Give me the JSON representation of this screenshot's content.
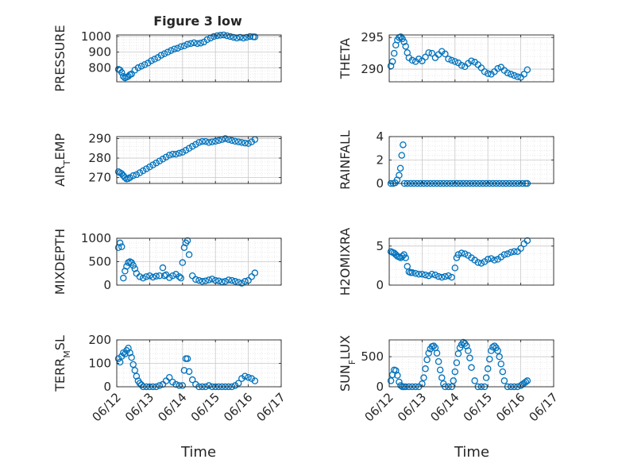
{
  "figure": {
    "title": "Figure 3 low",
    "xlabel": "Time",
    "xtick_labels": [
      "06/12",
      "06/13",
      "06/14",
      "06/15",
      "06/16",
      "06/17"
    ]
  },
  "colors": {
    "marker": "#0072BD",
    "grid": "#dcdcdc",
    "axis": "#262626",
    "background": "#ffffff"
  },
  "chart_data": [
    {
      "type": "scatter",
      "ylabel": "PRESSURE",
      "ylim": [
        710,
        1010
      ],
      "yticks": [
        800,
        900,
        1000
      ],
      "xlim": [
        0,
        5
      ],
      "xticks": [
        0,
        1,
        2,
        3,
        4,
        5
      ],
      "grid": true,
      "series": [
        {
          "x": [
            0.05,
            0.1,
            0.15,
            0.2,
            0.25,
            0.3,
            0.35,
            0.4,
            0.45,
            0.55,
            0.65,
            0.75,
            0.85,
            0.95,
            1.05,
            1.15,
            1.25,
            1.35,
            1.45,
            1.55,
            1.65,
            1.75,
            1.85,
            1.95,
            2.05,
            2.15,
            2.25,
            2.35,
            2.45,
            2.55,
            2.65,
            2.75,
            2.85,
            2.95,
            3.05,
            3.15,
            3.25,
            3.35,
            3.45,
            3.55,
            3.65,
            3.75,
            3.85,
            3.95,
            4.05,
            4.15,
            4.2
          ],
          "y": [
            790,
            785,
            770,
            745,
            735,
            740,
            745,
            755,
            760,
            785,
            800,
            810,
            820,
            830,
            845,
            855,
            865,
            880,
            890,
            900,
            910,
            920,
            925,
            935,
            940,
            950,
            955,
            960,
            955,
            958,
            965,
            980,
            990,
            1000,
            1005,
            1008,
            1010,
            1005,
            1000,
            995,
            990,
            995,
            990,
            995,
            1000,
            998,
            997
          ]
        }
      ]
    },
    {
      "type": "scatter",
      "ylabel": "THETA",
      "ylim": [
        288,
        295.4
      ],
      "yticks": [
        290,
        295
      ],
      "xlim": [
        0,
        5
      ],
      "xticks": [
        0,
        1,
        2,
        3,
        4,
        5
      ],
      "grid": true,
      "series": [
        {
          "x": [
            0.05,
            0.1,
            0.15,
            0.2,
            0.25,
            0.3,
            0.35,
            0.4,
            0.45,
            0.5,
            0.55,
            0.6,
            0.7,
            0.8,
            0.9,
            1.0,
            1.1,
            1.2,
            1.3,
            1.4,
            1.5,
            1.6,
            1.7,
            1.8,
            1.9,
            2.0,
            2.1,
            2.2,
            2.3,
            2.4,
            2.5,
            2.6,
            2.7,
            2.8,
            2.9,
            3.0,
            3.1,
            3.2,
            3.3,
            3.4,
            3.5,
            3.6,
            3.7,
            3.8,
            3.9,
            4.0,
            4.1,
            4.2
          ],
          "y": [
            290.5,
            291.2,
            292.5,
            293.8,
            294.6,
            295,
            295.1,
            294.8,
            294.3,
            293.6,
            292.6,
            291.8,
            291.4,
            291.2,
            291.6,
            291.3,
            291.9,
            292.6,
            292.5,
            291.8,
            292.3,
            292.8,
            292.4,
            291.6,
            291.4,
            291.2,
            291,
            290.6,
            290.4,
            290.9,
            291.3,
            291.1,
            290.7,
            290.2,
            289.6,
            289.3,
            289.2,
            289.6,
            290.1,
            290.3,
            289.8,
            289.4,
            289.2,
            289,
            288.8,
            288.7,
            289.2,
            289.9
          ]
        }
      ]
    },
    {
      "type": "scatter",
      "ylabel": "AIR_TEMP",
      "ylim": [
        267,
        291
      ],
      "yticks": [
        270,
        280,
        290
      ],
      "xlim": [
        0,
        5
      ],
      "xticks": [
        0,
        1,
        2,
        3,
        4,
        5
      ],
      "grid": true,
      "series": [
        {
          "x": [
            0.05,
            0.1,
            0.15,
            0.2,
            0.25,
            0.3,
            0.35,
            0.4,
            0.5,
            0.6,
            0.7,
            0.8,
            0.9,
            1.0,
            1.1,
            1.2,
            1.3,
            1.4,
            1.5,
            1.6,
            1.7,
            1.8,
            1.9,
            2.0,
            2.1,
            2.2,
            2.3,
            2.4,
            2.5,
            2.6,
            2.7,
            2.8,
            2.9,
            3.0,
            3.1,
            3.2,
            3.3,
            3.4,
            3.5,
            3.6,
            3.7,
            3.8,
            3.9,
            4.0,
            4.1,
            4.2
          ],
          "y": [
            273,
            272.5,
            272,
            271,
            270,
            269.3,
            269.5,
            270,
            271,
            271.5,
            272.5,
            273.5,
            274.5,
            275.5,
            276.5,
            277.5,
            278.5,
            279.5,
            280.5,
            281.5,
            282,
            282,
            282.5,
            283,
            284,
            285,
            286,
            287,
            288,
            288.5,
            288.5,
            288,
            288.3,
            288.6,
            289,
            289.5,
            290,
            289.5,
            289,
            288.6,
            288.3,
            288,
            287.7,
            287.5,
            288.3,
            289.5
          ]
        }
      ]
    },
    {
      "type": "scatter",
      "ylabel": "RAINFALL",
      "ylim": [
        0,
        4
      ],
      "yticks": [
        0,
        2,
        4
      ],
      "xlim": [
        0,
        5
      ],
      "xticks": [
        0,
        1,
        2,
        3,
        4,
        5
      ],
      "grid": true,
      "series": [
        {
          "x": [
            0.05,
            0.12,
            0.18,
            0.24,
            0.3,
            0.34,
            0.38,
            0.42,
            0.46,
            0.55,
            0.65,
            0.75,
            0.85,
            0.95,
            1.05,
            1.15,
            1.25,
            1.35,
            1.45,
            1.55,
            1.65,
            1.75,
            1.85,
            1.95,
            2.05,
            2.15,
            2.25,
            2.35,
            2.45,
            2.55,
            2.65,
            2.75,
            2.85,
            2.95,
            3.05,
            3.15,
            3.25,
            3.35,
            3.45,
            3.55,
            3.65,
            3.75,
            3.85,
            3.95,
            4.05,
            4.15,
            4.2
          ],
          "y": [
            0,
            0,
            0.05,
            0.3,
            0.7,
            1.3,
            2.4,
            3.3,
            0,
            0,
            0,
            0,
            0,
            0,
            0,
            0,
            0,
            0,
            0,
            0,
            0,
            0,
            0,
            0,
            0,
            0,
            0,
            0,
            0,
            0,
            0,
            0,
            0,
            0,
            0,
            0,
            0,
            0,
            0,
            0,
            0,
            0,
            0,
            0,
            0,
            0,
            0
          ]
        }
      ]
    },
    {
      "type": "scatter",
      "ylabel": "MIXDEPTH",
      "ylim": [
        0,
        1000
      ],
      "yticks": [
        0,
        500,
        1000
      ],
      "xlim": [
        0,
        5
      ],
      "xticks": [
        0,
        1,
        2,
        3,
        4,
        5
      ],
      "grid": true,
      "series": [
        {
          "x": [
            0.05,
            0.1,
            0.15,
            0.2,
            0.25,
            0.3,
            0.35,
            0.4,
            0.45,
            0.5,
            0.55,
            0.6,
            0.7,
            0.8,
            0.9,
            1.0,
            1.1,
            1.2,
            1.3,
            1.4,
            1.45,
            1.5,
            1.6,
            1.7,
            1.8,
            1.9,
            1.95,
            2.0,
            2.05,
            2.1,
            2.15,
            2.2,
            2.3,
            2.4,
            2.5,
            2.6,
            2.7,
            2.8,
            2.9,
            3.0,
            3.1,
            3.2,
            3.3,
            3.4,
            3.5,
            3.6,
            3.7,
            3.8,
            3.9,
            4.0,
            4.1,
            4.2
          ],
          "y": [
            800,
            900,
            820,
            150,
            300,
            400,
            480,
            500,
            480,
            420,
            350,
            250,
            180,
            150,
            180,
            200,
            170,
            190,
            200,
            370,
            200,
            220,
            160,
            200,
            230,
            180,
            150,
            480,
            800,
            900,
            950,
            650,
            200,
            120,
            100,
            80,
            90,
            110,
            130,
            100,
            90,
            70,
            80,
            110,
            100,
            80,
            60,
            40,
            80,
            100,
            180,
            260
          ]
        }
      ]
    },
    {
      "type": "scatter",
      "ylabel": "H2OMIXRA",
      "ylim": [
        0,
        6
      ],
      "yticks": [
        0,
        5
      ],
      "xlim": [
        0,
        5
      ],
      "xticks": [
        0,
        1,
        2,
        3,
        4,
        5
      ],
      "grid": true,
      "series": [
        {
          "x": [
            0.05,
            0.1,
            0.15,
            0.2,
            0.25,
            0.3,
            0.35,
            0.4,
            0.45,
            0.5,
            0.55,
            0.6,
            0.65,
            0.7,
            0.8,
            0.9,
            1.0,
            1.1,
            1.2,
            1.3,
            1.4,
            1.5,
            1.6,
            1.7,
            1.8,
            1.9,
            2.0,
            2.05,
            2.1,
            2.2,
            2.3,
            2.4,
            2.5,
            2.6,
            2.7,
            2.8,
            2.9,
            3.0,
            3.1,
            3.2,
            3.3,
            3.4,
            3.5,
            3.6,
            3.7,
            3.8,
            3.9,
            4.0,
            4.1,
            4.2
          ],
          "y": [
            4.3,
            4.2,
            4.1,
            3.9,
            3.7,
            3.6,
            3.5,
            3.7,
            3.9,
            3.5,
            2.4,
            1.7,
            1.6,
            1.6,
            1.5,
            1.4,
            1.4,
            1.3,
            1.2,
            1.4,
            1.3,
            1.1,
            1.0,
            1.1,
            1.2,
            1.0,
            2.2,
            3.5,
            3.9,
            4.1,
            4.0,
            3.8,
            3.5,
            3.2,
            2.9,
            2.8,
            3.0,
            3.3,
            3.4,
            3.2,
            3.3,
            3.6,
            3.9,
            4.0,
            4.2,
            4.3,
            4.3,
            4.7,
            5.3,
            5.7
          ]
        }
      ]
    },
    {
      "type": "scatter",
      "ylabel": "TERR_MSL",
      "ylim": [
        0,
        200
      ],
      "yticks": [
        0,
        100,
        200
      ],
      "xlim": [
        0,
        5
      ],
      "xticks": [
        0,
        1,
        2,
        3,
        4,
        5
      ],
      "grid": true,
      "series": [
        {
          "x": [
            0.05,
            0.1,
            0.15,
            0.2,
            0.25,
            0.3,
            0.35,
            0.4,
            0.45,
            0.5,
            0.55,
            0.6,
            0.65,
            0.7,
            0.75,
            0.8,
            0.9,
            1.0,
            1.1,
            1.2,
            1.3,
            1.4,
            1.5,
            1.6,
            1.7,
            1.8,
            1.9,
            2.0,
            2.05,
            2.1,
            2.15,
            2.2,
            2.3,
            2.4,
            2.5,
            2.6,
            2.7,
            2.8,
            2.9,
            3.0,
            3.1,
            3.2,
            3.3,
            3.4,
            3.5,
            3.6,
            3.7,
            3.8,
            3.9,
            4.0,
            4.1,
            4.2
          ],
          "y": [
            120,
            105,
            130,
            145,
            140,
            155,
            165,
            145,
            125,
            95,
            70,
            45,
            25,
            15,
            8,
            0,
            0,
            0,
            0,
            0,
            5,
            10,
            25,
            40,
            20,
            10,
            5,
            5,
            70,
            120,
            120,
            65,
            30,
            10,
            0,
            0,
            0,
            5,
            0,
            0,
            0,
            0,
            0,
            0,
            0,
            5,
            15,
            35,
            45,
            40,
            35,
            25
          ]
        }
      ]
    },
    {
      "type": "scatter",
      "ylabel": "SUN_FLUX",
      "ylim": [
        0,
        780
      ],
      "yticks": [
        0,
        500
      ],
      "xlim": [
        0,
        5
      ],
      "xticks": [
        0,
        1,
        2,
        3,
        4,
        5
      ],
      "grid": true,
      "series": [
        {
          "x": [
            0.05,
            0.1,
            0.15,
            0.2,
            0.25,
            0.3,
            0.35,
            0.4,
            0.45,
            0.5,
            0.6,
            0.7,
            0.8,
            0.9,
            1.0,
            1.05,
            1.1,
            1.15,
            1.2,
            1.25,
            1.3,
            1.35,
            1.4,
            1.45,
            1.5,
            1.55,
            1.6,
            1.65,
            1.7,
            1.8,
            1.9,
            1.95,
            2.0,
            2.05,
            2.1,
            2.15,
            2.2,
            2.25,
            2.3,
            2.35,
            2.4,
            2.45,
            2.5,
            2.6,
            2.7,
            2.8,
            2.9,
            2.95,
            3.0,
            3.05,
            3.1,
            3.15,
            3.2,
            3.25,
            3.3,
            3.35,
            3.4,
            3.45,
            3.5,
            3.6,
            3.7,
            3.8,
            3.9,
            4.0,
            4.05,
            4.1,
            4.15,
            4.2
          ],
          "y": [
            100,
            200,
            280,
            270,
            190,
            80,
            20,
            0,
            0,
            0,
            0,
            0,
            0,
            0,
            50,
            150,
            300,
            450,
            560,
            630,
            670,
            680,
            650,
            560,
            420,
            280,
            150,
            50,
            0,
            0,
            0,
            100,
            250,
            400,
            550,
            650,
            700,
            740,
            720,
            680,
            600,
            480,
            320,
            100,
            0,
            0,
            0,
            150,
            300,
            460,
            600,
            660,
            680,
            650,
            600,
            500,
            380,
            250,
            100,
            0,
            0,
            0,
            0,
            20,
            40,
            60,
            80,
            100
          ]
        }
      ]
    }
  ]
}
